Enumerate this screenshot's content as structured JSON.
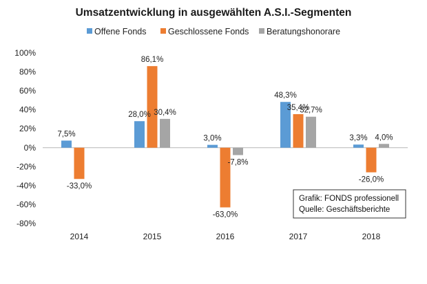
{
  "chart_data": {
    "type": "bar",
    "title": "Umsatzentwicklung in ausgewählten A.S.I.-Segmenten",
    "xlabel": "",
    "ylabel": "",
    "categories": [
      "2014",
      "2015",
      "2016",
      "2017",
      "2018"
    ],
    "series": [
      {
        "name": "Offene Fonds",
        "color": "#5B9BD5",
        "values": [
          7.5,
          28.0,
          3.0,
          48.3,
          3.3
        ],
        "labels": [
          "7,5%",
          "28,0%",
          "3,0%",
          "48,3%",
          "3,3%"
        ]
      },
      {
        "name": "Geschlossene Fonds",
        "color": "#ED7D31",
        "values": [
          -33.0,
          86.1,
          -63.0,
          35.4,
          -26.0
        ],
        "labels": [
          "-33,0%",
          "86,1%",
          "-63,0%",
          "35,4%",
          "-26,0%"
        ]
      },
      {
        "name": "Beratungshonorare",
        "color": "#A5A5A5",
        "values": [
          null,
          30.4,
          -7.8,
          32.7,
          4.0
        ],
        "labels": [
          null,
          "30,4%",
          "-7,8%",
          "32,7%",
          "4,0%"
        ]
      }
    ],
    "ylim": [
      -80,
      100
    ],
    "yticks": [
      100,
      80,
      60,
      40,
      20,
      0,
      -20,
      -40,
      -60,
      -80
    ],
    "ytick_labels": [
      "100%",
      "80%",
      "60%",
      "40%",
      "20%",
      "0%",
      "-20%",
      "-40%",
      "-60%",
      "-80%"
    ],
    "legend_position": "top",
    "grid": false
  },
  "annotation": {
    "line1": "Grafik: FONDS professionell",
    "line2": "Quelle: Geschäftsberichte"
  }
}
